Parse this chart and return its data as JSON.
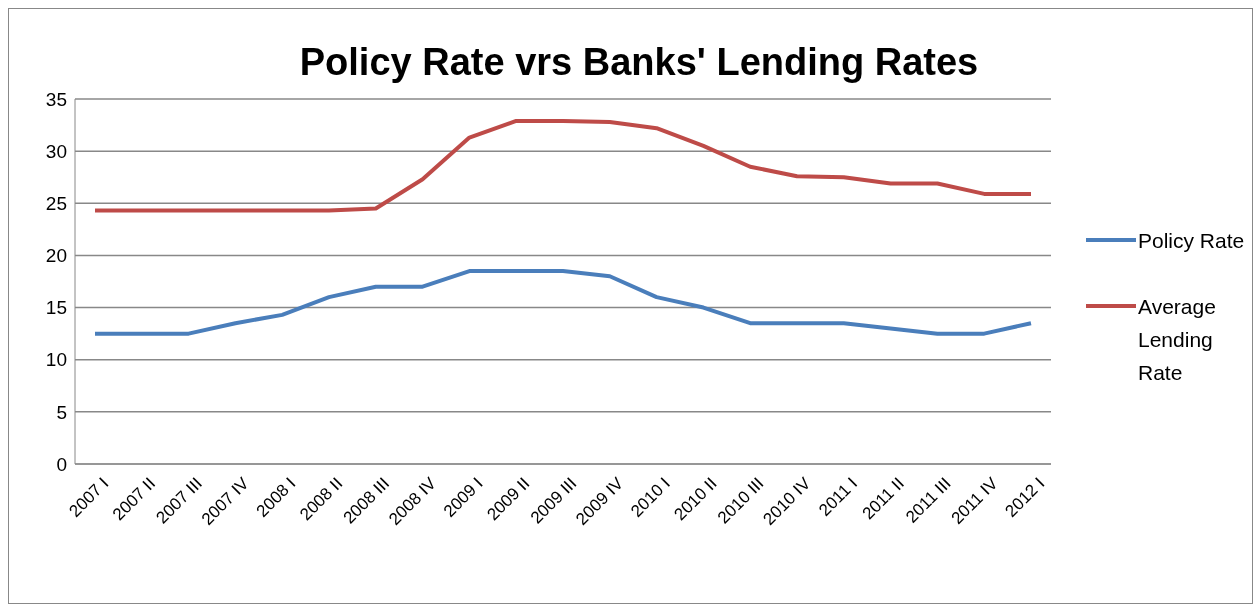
{
  "chart_data": {
    "type": "line",
    "title": "Policy Rate vrs Banks' Lending Rates",
    "categories": [
      "2007 I",
      "2007 II",
      "2007 III",
      "2007 IV",
      "2008 I",
      "2008 II",
      "2008 III",
      "2008 IV",
      "2009 I",
      "2009 II",
      "2009 III",
      "2009 IV",
      "2010 I",
      "2010 II",
      "2010 III",
      "2010 IV",
      "2011 I",
      "2011 II",
      "2011 III",
      "2011 IV",
      "2012 I"
    ],
    "series": [
      {
        "name": "Policy Rate",
        "color": "#4a7ebb",
        "values": [
          12.5,
          12.5,
          12.5,
          13.5,
          14.3,
          16,
          17,
          17,
          18.5,
          18.5,
          18.5,
          18,
          16,
          15,
          13.5,
          13.5,
          13.5,
          13,
          12.5,
          12.5,
          13.5
        ]
      },
      {
        "name": "Average Lending Rate",
        "color": "#be4b48",
        "values": [
          24.3,
          24.3,
          24.3,
          24.3,
          24.3,
          24.3,
          24.5,
          27.3,
          31.3,
          32.9,
          32.9,
          32.8,
          32.2,
          30.5,
          28.5,
          27.6,
          27.5,
          26.9,
          26.9,
          25.9,
          25.9
        ]
      }
    ],
    "ylim": [
      0,
      35
    ],
    "yticks": [
      0,
      5,
      10,
      15,
      20,
      25,
      30,
      35
    ],
    "grid": "y",
    "legend": "right",
    "marker": "none",
    "line_style": "solid"
  }
}
